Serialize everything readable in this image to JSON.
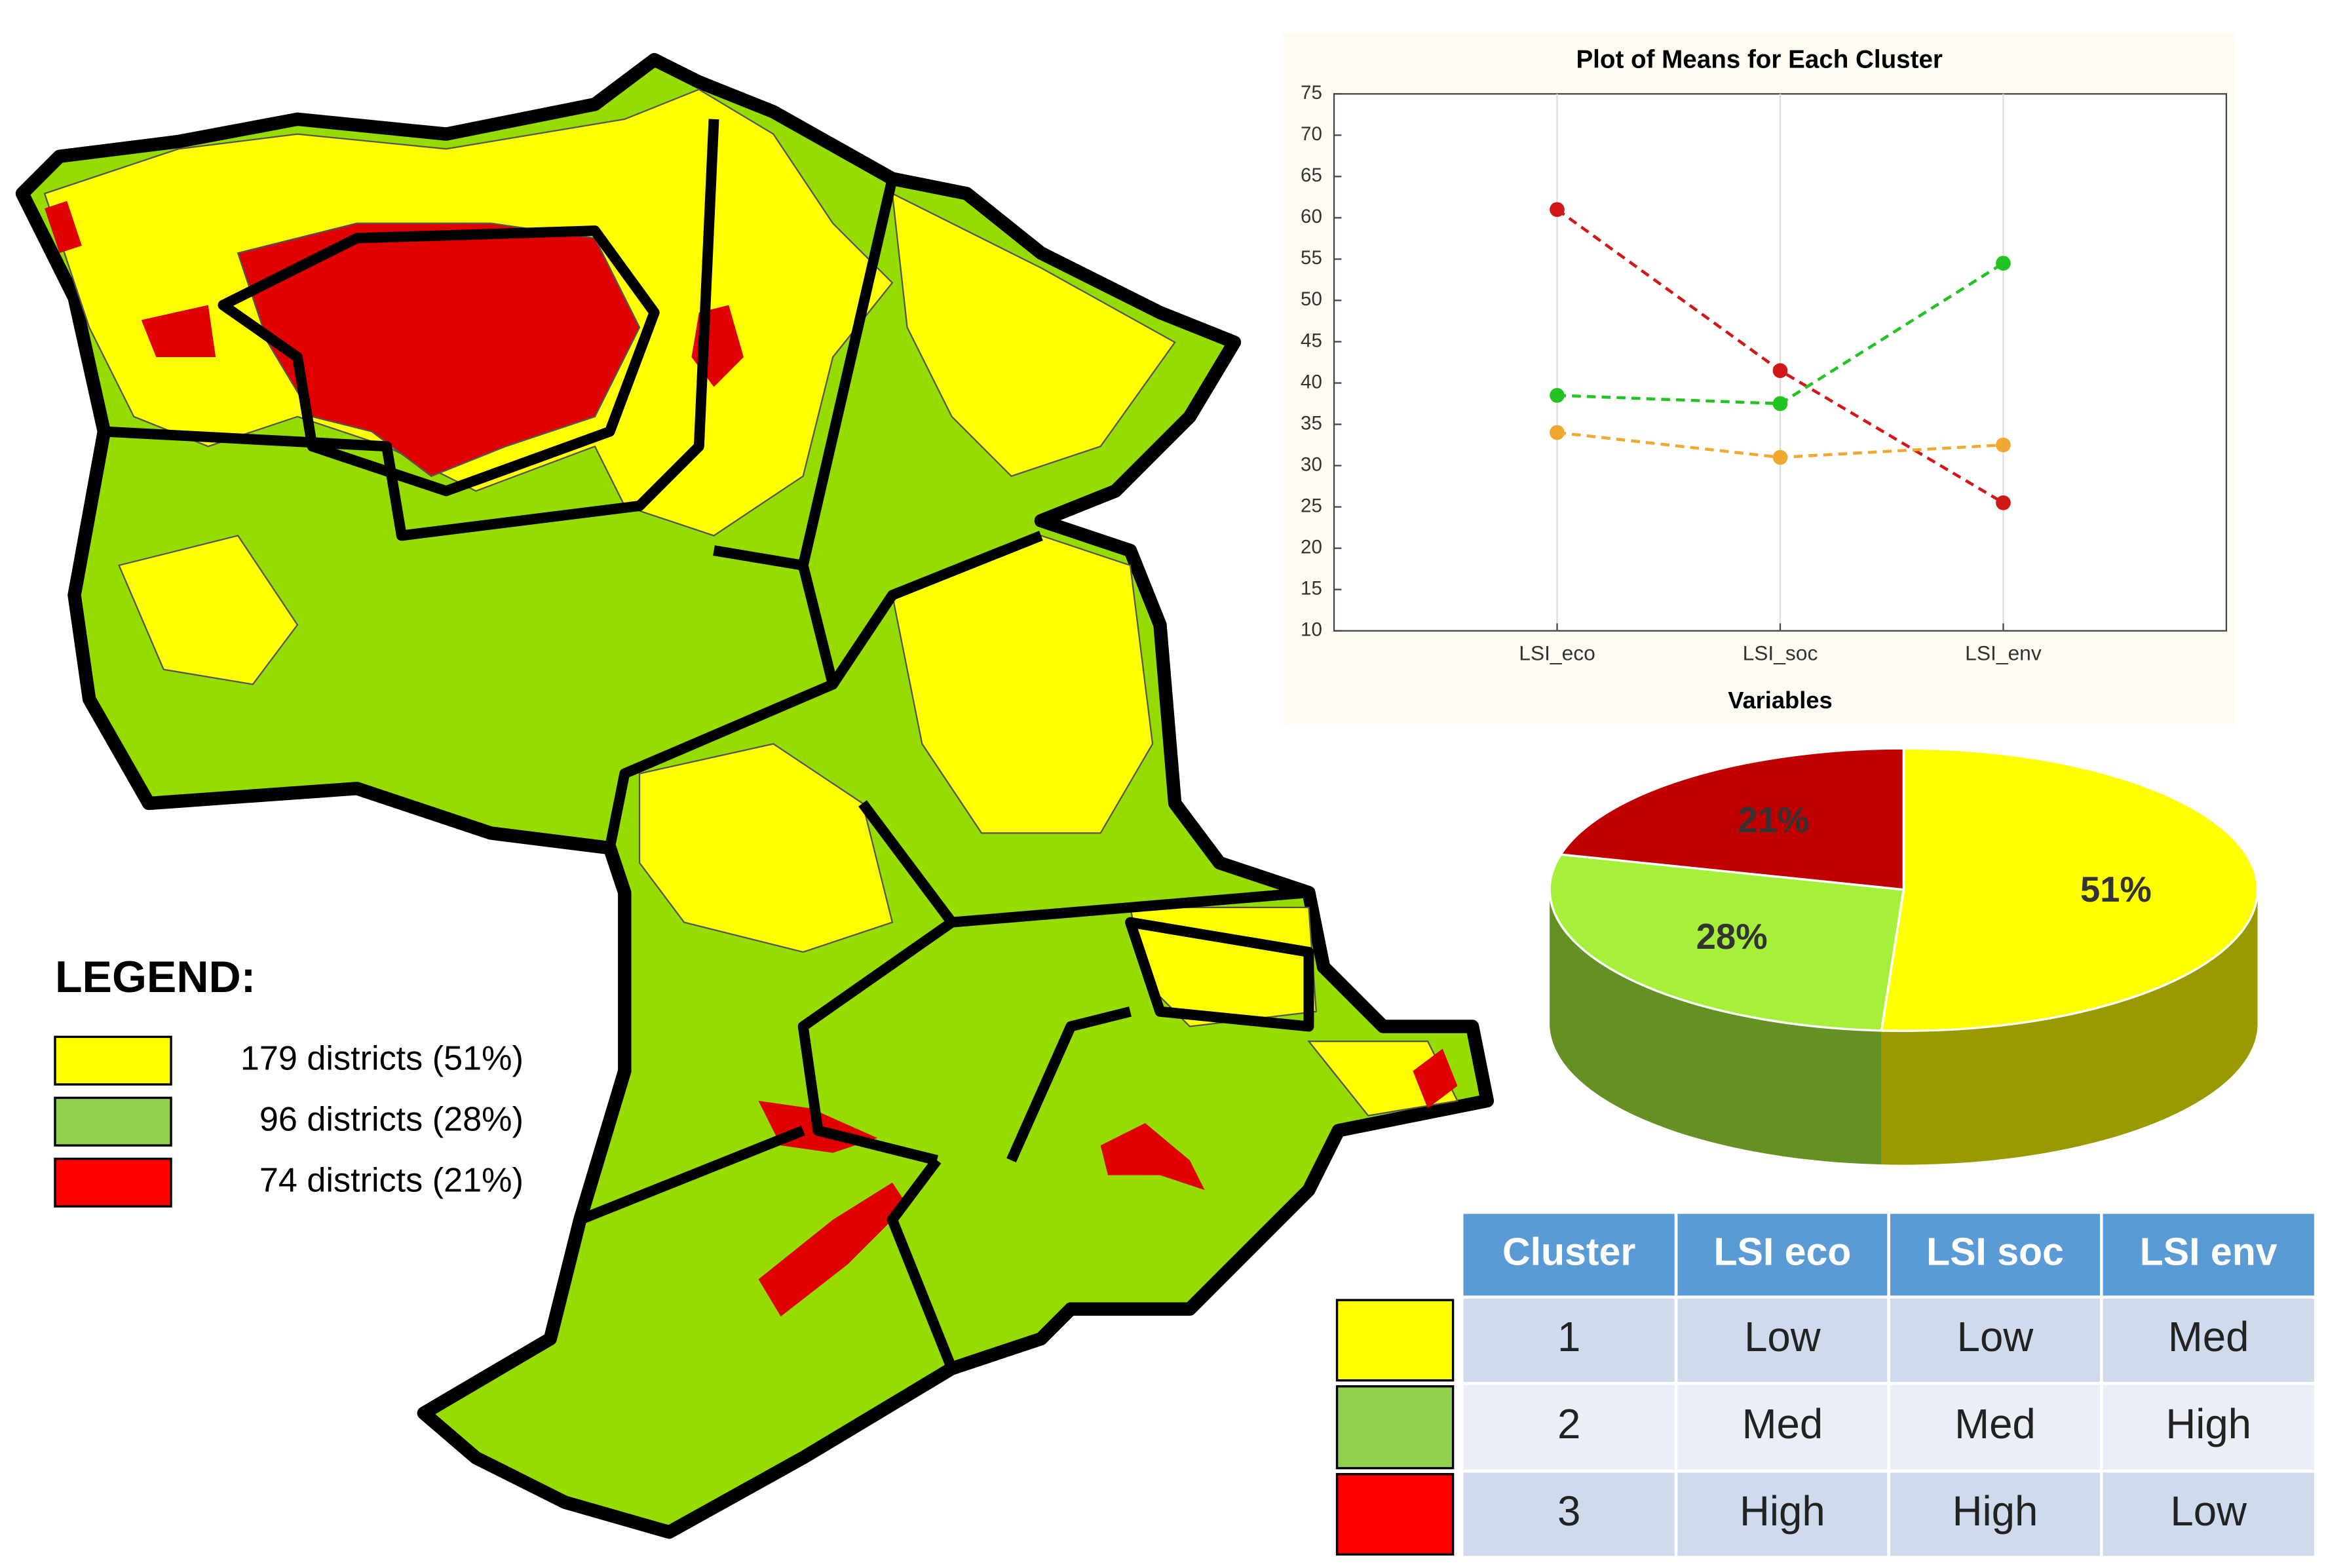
{
  "chart_data": [
    {
      "type": "line",
      "title": "Plot of Means for Each Cluster",
      "x_label": "Variables",
      "categories": [
        "LSI_eco",
        "LSI_soc",
        "LSI_env"
      ],
      "series": [
        {
          "color": "#d01818",
          "values": [
            61,
            41.5,
            25.5
          ]
        },
        {
          "color": "#22c322",
          "values": [
            38.5,
            37.5,
            54.5
          ]
        },
        {
          "color": "#f0a830",
          "values": [
            34,
            31,
            32.5
          ]
        }
      ],
      "ylim": [
        10,
        75
      ],
      "yticks": [
        10,
        15,
        20,
        25,
        30,
        35,
        40,
        45,
        50,
        55,
        60,
        65,
        70,
        75
      ],
      "grid": true
    },
    {
      "type": "pie",
      "values": [
        51,
        28,
        21
      ],
      "value_labels": [
        "51%",
        "28%",
        "21%"
      ],
      "colors": [
        "#ffff00",
        "#a6f03c",
        "#c00000"
      ]
    }
  ],
  "legend": {
    "title": "LEGEND:",
    "items": [
      {
        "label": "179 districts (51%)",
        "color": "#ffff00"
      },
      {
        "label": "96 districts (28%)",
        "color": "#92d050"
      },
      {
        "label": "74 districts (21%)",
        "color": "#ff0000"
      }
    ]
  },
  "table": {
    "header": [
      "Cluster",
      "LSI eco",
      "LSI soc",
      "LSI env"
    ],
    "rows": [
      [
        "1",
        "Low",
        "Low",
        "Med"
      ],
      [
        "2",
        "Med",
        "Med",
        "High"
      ],
      [
        "3",
        "High",
        "High",
        "Low"
      ]
    ],
    "row_colors": [
      "#ffff00",
      "#92d050",
      "#ff0000"
    ]
  }
}
